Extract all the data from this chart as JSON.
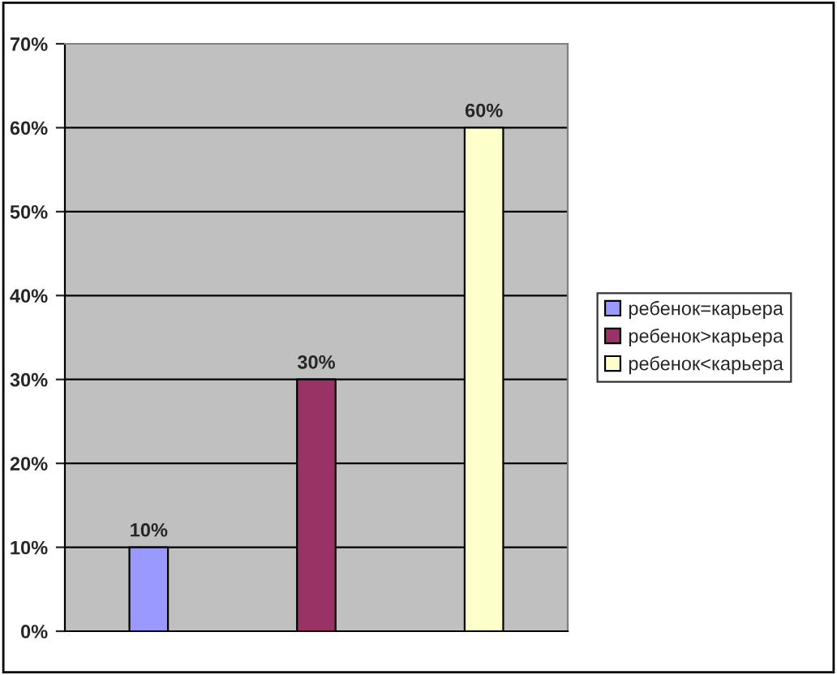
{
  "chart_data": {
    "type": "bar",
    "categories": [
      null,
      null,
      null
    ],
    "series": [
      {
        "name": "ребенок=карьера",
        "color": "#9999ff",
        "values": [
          10,
          null,
          null
        ],
        "value_labels": [
          "10%",
          null,
          null
        ]
      },
      {
        "name": "ребенок>карьера",
        "color": "#993366",
        "values": [
          null,
          30,
          null
        ],
        "value_labels": [
          null,
          "30%",
          null
        ]
      },
      {
        "name": "ребенок<карьера",
        "color": "#ffffcc",
        "values": [
          null,
          null,
          60
        ],
        "value_labels": [
          null,
          null,
          "60%"
        ]
      }
    ],
    "ylim": [
      0,
      70
    ],
    "yticks": [
      {
        "value": 0,
        "label": "0%"
      },
      {
        "value": 10,
        "label": "10%"
      },
      {
        "value": 20,
        "label": "20%"
      },
      {
        "value": 30,
        "label": "30%"
      },
      {
        "value": 40,
        "label": "40%"
      },
      {
        "value": 50,
        "label": "50%"
      },
      {
        "value": 60,
        "label": "60%"
      },
      {
        "value": 70,
        "label": "70%"
      }
    ],
    "grid": "y",
    "legend": "right"
  }
}
